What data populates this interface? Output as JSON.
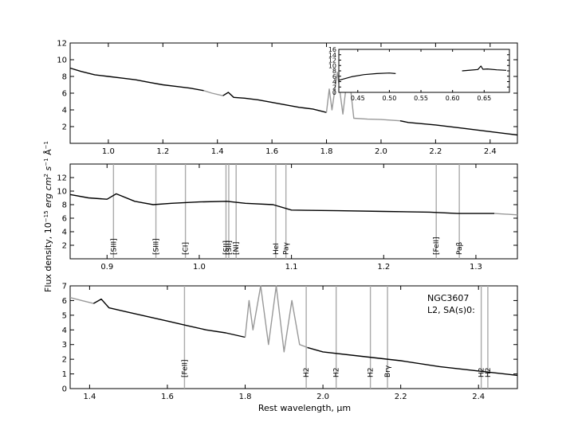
{
  "figure": {
    "ylabel": "Flux density, 10^-15 erg cm^-2 s^-1 Å^-1",
    "ylabel_parts": [
      "Flux density, 10",
      "−15",
      " erg cm",
      "2",
      " s",
      "−1",
      " Å",
      "−1"
    ],
    "xlabel": "Rest wavelength, μm",
    "object_name": "NGC3607",
    "classification": "L2,  SA(s)0:"
  },
  "chart_data": [
    {
      "type": "line",
      "panel": "top",
      "xlim": [
        0.86,
        2.5
      ],
      "ylim": [
        0,
        12
      ],
      "xticks": [
        1.0,
        1.2,
        1.4,
        1.6,
        1.8,
        2.0,
        2.2,
        2.4
      ],
      "yticks": [
        2,
        4,
        6,
        8,
        10,
        12
      ],
      "series": [
        {
          "color": "#000000",
          "x": [
            0.86,
            0.9,
            0.95,
            1.0,
            1.05,
            1.1,
            1.15,
            1.2,
            1.25,
            1.3,
            1.35
          ],
          "y": [
            9.0,
            8.6,
            8.2,
            8.0,
            7.8,
            7.6,
            7.3,
            7.0,
            6.8,
            6.6,
            6.3
          ]
        },
        {
          "color": "#999999",
          "x": [
            1.35,
            1.38,
            1.42
          ],
          "y": [
            6.3,
            6.0,
            5.7
          ]
        },
        {
          "color": "#000000",
          "x": [
            1.42,
            1.44,
            1.46,
            1.5,
            1.55,
            1.6,
            1.65,
            1.7,
            1.75,
            1.8
          ],
          "y": [
            5.7,
            6.1,
            5.5,
            5.4,
            5.2,
            4.9,
            4.6,
            4.3,
            4.1,
            3.7
          ]
        },
        {
          "color": "#999999",
          "x": [
            1.8,
            1.81,
            1.82,
            1.84,
            1.86,
            1.88,
            1.9,
            1.95,
            2.0,
            2.07
          ],
          "y": [
            3.7,
            6.5,
            4.0,
            8.5,
            3.5,
            9.0,
            3.0,
            2.9,
            2.85,
            2.7
          ]
        },
        {
          "color": "#000000",
          "x": [
            2.07,
            2.1,
            2.2,
            2.3,
            2.4,
            2.5
          ],
          "y": [
            2.7,
            2.5,
            2.2,
            1.8,
            1.4,
            1.0
          ]
        }
      ],
      "inset": {
        "xlim": [
          0.42,
          0.69
        ],
        "ylim": [
          0,
          16
        ],
        "xticks": [
          0.45,
          0.5,
          0.55,
          0.6,
          0.65
        ],
        "yticks": [
          0,
          2,
          4,
          6,
          8,
          10,
          12,
          14,
          16
        ],
        "series": [
          {
            "color": "#000000",
            "x": [
              0.42,
              0.44,
              0.46,
              0.48,
              0.5,
              0.51
            ],
            "y": [
              4.5,
              5.8,
              6.6,
              7.0,
              7.2,
              7.0
            ]
          },
          {
            "color": "#000000",
            "x": [
              0.615,
              0.63,
              0.64,
              0.645,
              0.648,
              0.655,
              0.67,
              0.685
            ],
            "y": [
              8.0,
              8.3,
              8.5,
              9.8,
              8.6,
              8.7,
              8.4,
              8.2
            ]
          }
        ]
      }
    },
    {
      "type": "line",
      "panel": "middle",
      "xlim": [
        0.86,
        1.345
      ],
      "ylim": [
        0,
        14
      ],
      "xticks": [
        0.9,
        1.0,
        1.1,
        1.2,
        1.3
      ],
      "yticks": [
        2,
        4,
        6,
        8,
        10,
        12
      ],
      "series": [
        {
          "color": "#000000",
          "x": [
            0.86,
            0.88,
            0.9,
            0.91,
            0.93,
            0.95,
            0.97,
            1.0,
            1.03,
            1.05,
            1.08,
            1.1,
            1.15,
            1.2,
            1.25,
            1.28,
            1.32
          ],
          "y": [
            9.5,
            9.0,
            8.8,
            9.6,
            8.5,
            8.0,
            8.2,
            8.4,
            8.5,
            8.2,
            8.0,
            7.2,
            7.1,
            7.0,
            6.9,
            6.7,
            6.7
          ]
        },
        {
          "color": "#999999",
          "x": [
            1.32,
            1.345
          ],
          "y": [
            6.7,
            6.5
          ]
        }
      ],
      "lines": [
        {
          "x": 0.907,
          "label": "[SIII]"
        },
        {
          "x": 0.953,
          "label": "[SIII]"
        },
        {
          "x": 0.985,
          "label": "[CI]"
        },
        {
          "x": 1.029,
          "label": "[SII]"
        },
        {
          "x": 1.032,
          "label": "[SII]"
        },
        {
          "x": 1.04,
          "label": "[NI]"
        },
        {
          "x": 1.083,
          "label": "HeI"
        },
        {
          "x": 1.094,
          "label": "Paγ"
        },
        {
          "x": 1.257,
          "label": "[FeII]"
        },
        {
          "x": 1.282,
          "label": "Paβ"
        }
      ]
    },
    {
      "type": "line",
      "panel": "bottom",
      "xlim": [
        1.35,
        2.5
      ],
      "ylim": [
        0,
        7
      ],
      "xticks": [
        1.4,
        1.6,
        1.8,
        2.0,
        2.2,
        2.4
      ],
      "yticks": [
        0,
        1,
        2,
        3,
        4,
        5,
        6,
        7
      ],
      "series": [
        {
          "color": "#999999",
          "x": [
            1.35,
            1.38,
            1.41
          ],
          "y": [
            6.2,
            6.0,
            5.8
          ]
        },
        {
          "color": "#000000",
          "x": [
            1.41,
            1.43,
            1.45,
            1.5,
            1.55,
            1.6,
            1.65,
            1.7,
            1.75,
            1.8
          ],
          "y": [
            5.8,
            6.1,
            5.5,
            5.2,
            4.9,
            4.6,
            4.3,
            4.0,
            3.8,
            3.5
          ]
        },
        {
          "color": "#999999",
          "x": [
            1.8,
            1.81,
            1.82,
            1.84,
            1.86,
            1.88,
            1.9,
            1.92,
            1.94,
            1.96
          ],
          "y": [
            3.5,
            6.0,
            4.0,
            7.0,
            3.0,
            7.0,
            2.5,
            6.0,
            3.0,
            2.8
          ]
        },
        {
          "color": "#000000",
          "x": [
            1.96,
            2.0,
            2.1,
            2.2,
            2.3,
            2.4,
            2.5
          ],
          "y": [
            2.8,
            2.5,
            2.2,
            1.9,
            1.5,
            1.2,
            0.9
          ]
        }
      ],
      "lines": [
        {
          "x": 1.644,
          "label": "[FeII]"
        },
        {
          "x": 1.957,
          "label": "H2"
        },
        {
          "x": 2.034,
          "label": "H2"
        },
        {
          "x": 2.122,
          "label": "H2"
        },
        {
          "x": 2.166,
          "label": "Brγ"
        },
        {
          "x": 2.407,
          "label": "H2"
        },
        {
          "x": 2.424,
          "label": "H2"
        }
      ]
    }
  ]
}
